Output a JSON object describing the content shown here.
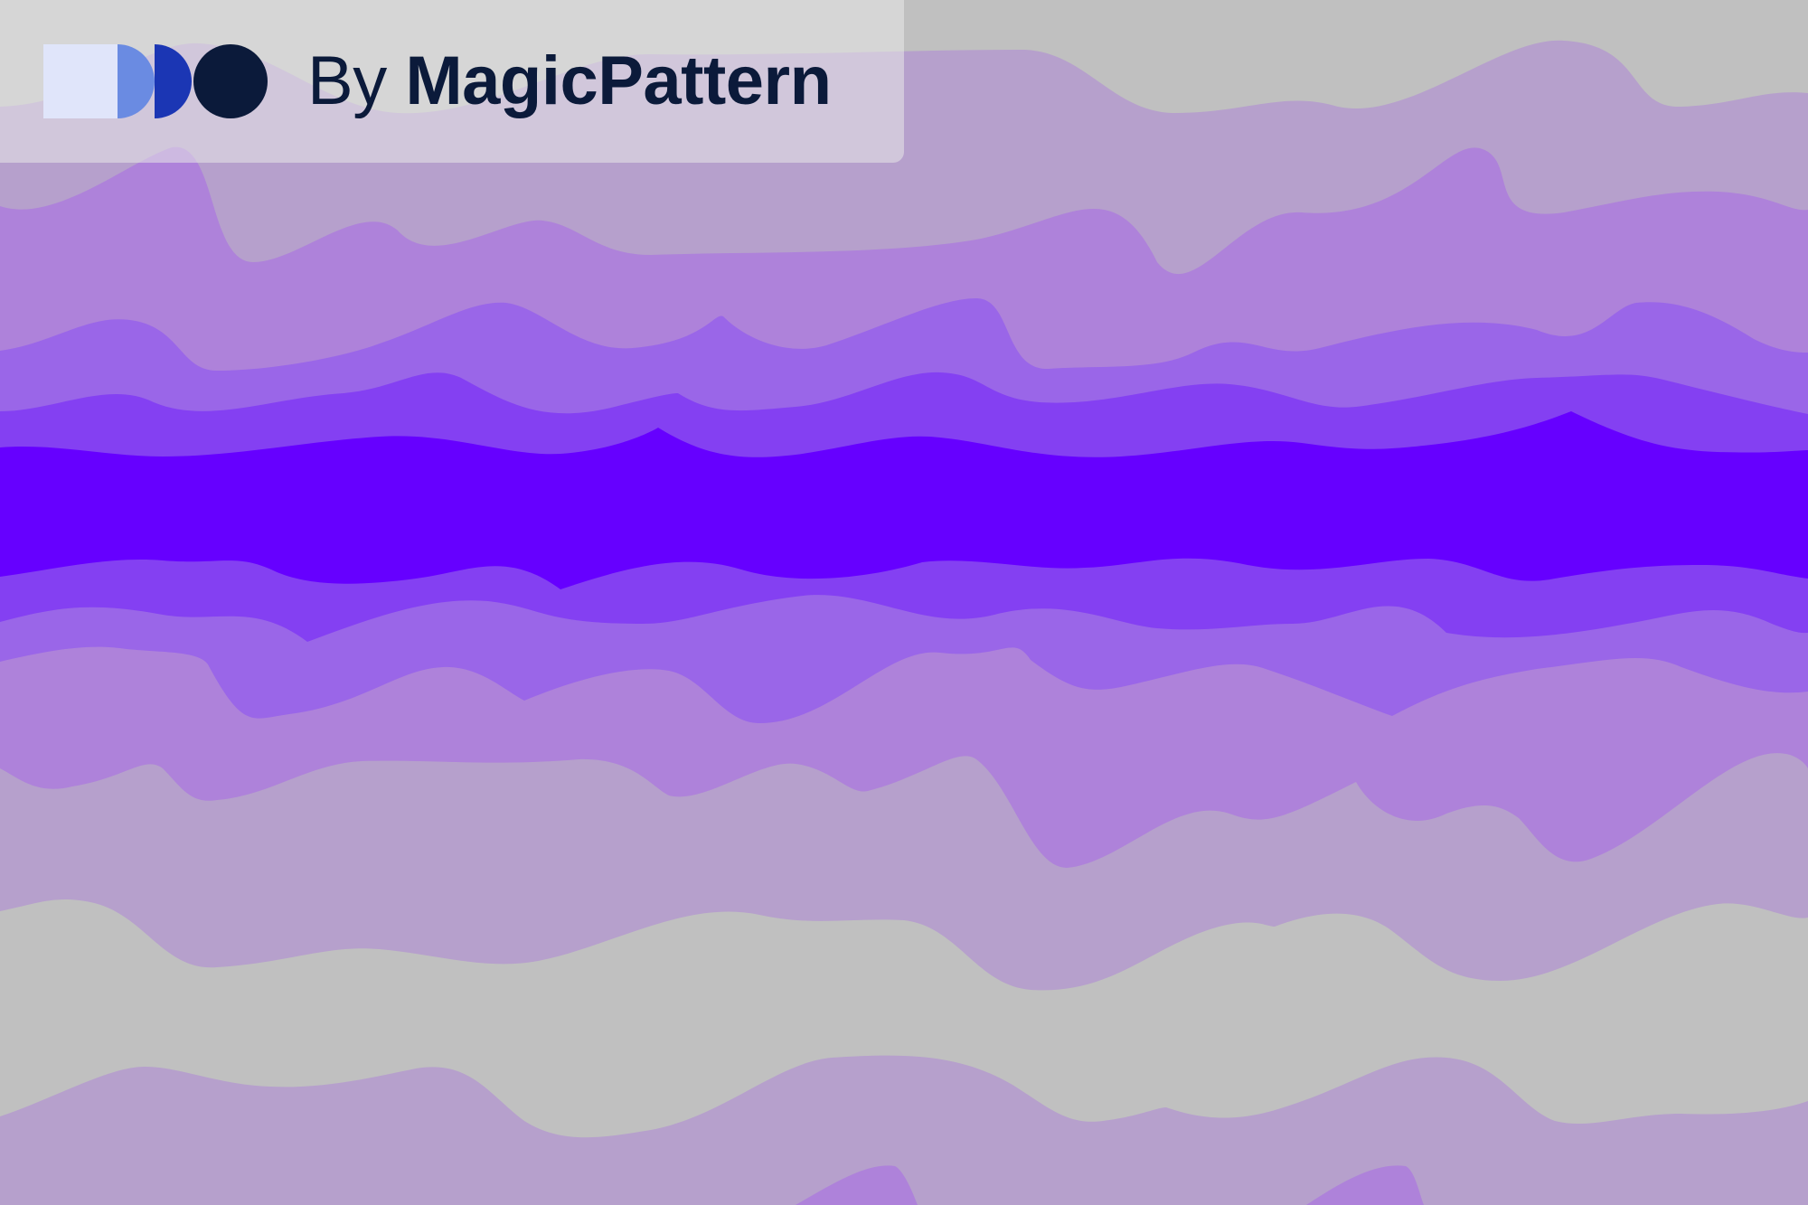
{
  "branding": {
    "prefix": "By",
    "name": "MagicPattern",
    "logo_icon": "magicpattern-logo-icon",
    "logo_colors": [
      "#e0e5fa",
      "#6a8be2",
      "#1b36b4",
      "#0b1a3a"
    ],
    "text_color": "#0b1a3a"
  },
  "pattern": {
    "style": "layered waves",
    "background_color": "#c0c0c0",
    "band_colors": [
      "#b6a0cc",
      "#ae82da",
      "#9a66e8",
      "#8440f2",
      "#6600ff"
    ]
  }
}
